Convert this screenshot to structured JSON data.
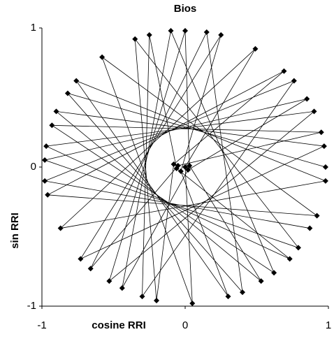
{
  "chart_data": {
    "type": "line",
    "title": "Bios",
    "x_label": "cosine RRI",
    "y_label": "sin RRI",
    "color": "#000000",
    "x": [
      0.98,
      -0.82,
      0.4,
      0.15,
      -0.66,
      -0.05,
      0.95,
      -0.93,
      0.62,
      -0.1,
      -0.44,
      0.02,
      0.85,
      -0.98,
      0.79,
      -0.35,
      -0.2,
      -0.08,
      0.69,
      -0.96,
      0.92,
      -0.58,
      0.05,
      0.0,
      0.49,
      -0.87,
      0.98,
      -0.76,
      0.3,
      -0.03,
      0.25,
      -0.73,
      0.97,
      -0.9,
      0.53,
      0.03,
      0,
      -0.53,
      0.9,
      -0.97,
      0.73,
      -0.06,
      -0.25,
      -0.3,
      0.76,
      -0.98,
      0.87
    ],
    "values": [
      0,
      0.53,
      -0.9,
      0.97,
      -0.73,
      0.01,
      0.25,
      0.3,
      -0.76,
      0.98,
      -0.87,
      -0.02,
      0.49,
      0.05,
      -0.58,
      0.92,
      -0.96,
      0.02,
      0.69,
      -0.2,
      -0.35,
      0.79,
      -0.98,
      0.0,
      0.85,
      -0.44,
      -0.1,
      0.62,
      -0.93,
      -0.03,
      0.95,
      -0.66,
      0.15,
      0.4,
      -0.82,
      0.01,
      0.98,
      -0.82,
      0.4,
      0.15,
      -0.66,
      -0.01,
      0.95,
      -0.93,
      0.62,
      -0.1,
      -0.44
    ],
    "xlim": [
      -1,
      1
    ],
    "ylim": [
      -1,
      1
    ],
    "xticks": [
      -1,
      0,
      1
    ],
    "yticks": [
      -1,
      0,
      1
    ]
  }
}
